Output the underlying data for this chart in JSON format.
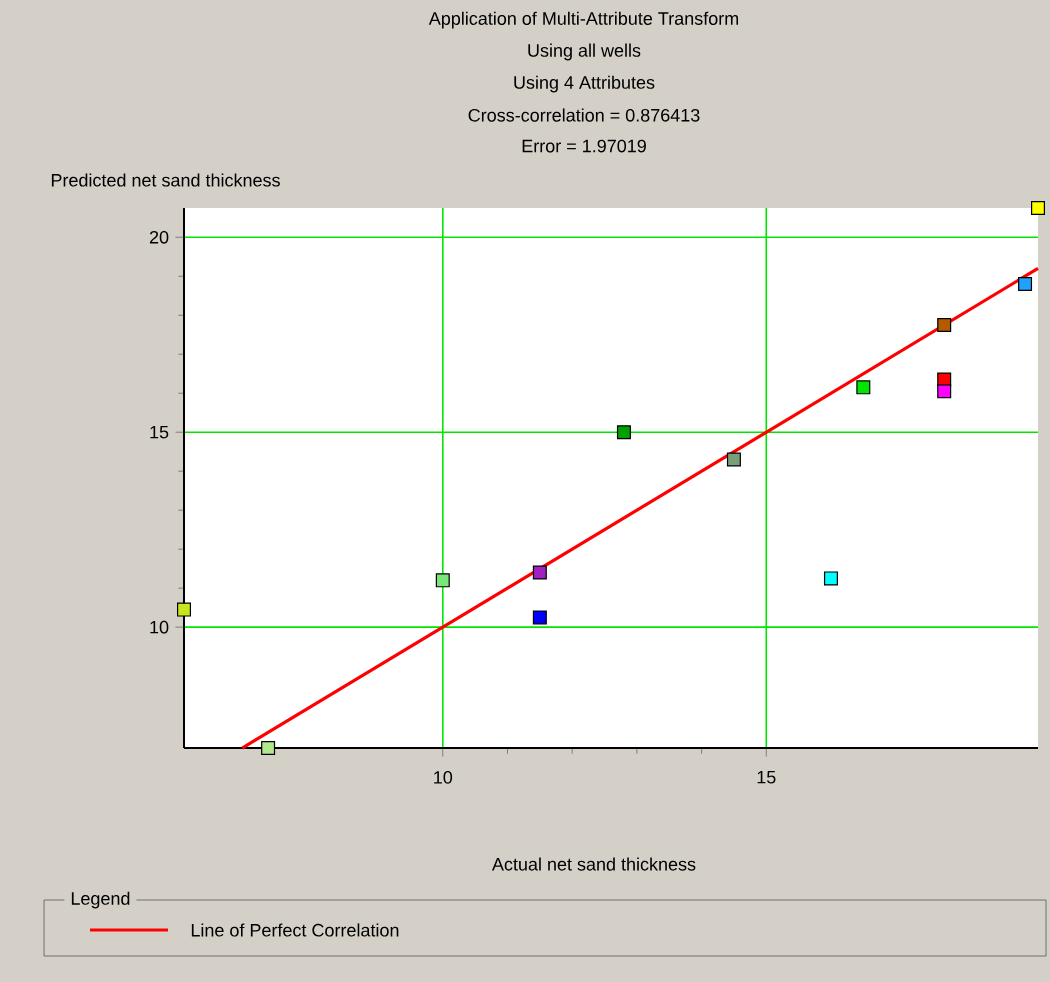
{
  "chart_data": {
    "type": "scatter",
    "title": "Application of Multi-Attribute Transform",
    "subtitle": "Using all wells",
    "annotations": [
      "Using 4 Attributes",
      "Cross-correlation = 0.876413",
      "Error = 1.97019"
    ],
    "xlabel": "Actual net sand thickness",
    "ylabel": "Predicted net sand thickness",
    "legend_title": "Legend",
    "legend": "bottom",
    "grid": true,
    "xlim": [
      6.0,
      19.2
    ],
    "ylim": [
      6.9,
      20.75
    ],
    "xticks": [
      10,
      15
    ],
    "yticks": [
      10,
      15,
      20
    ],
    "series": [
      {
        "type": "scatter",
        "marker": "square",
        "x": [
          6.0,
          7.3,
          10.0,
          11.5,
          11.5,
          12.8,
          14.5,
          16.0,
          16.5,
          17.75,
          17.75,
          17.75,
          19.0,
          19.2
        ],
        "values": [
          10.45,
          6.9,
          11.2,
          11.4,
          10.25,
          15.0,
          14.3,
          11.25,
          16.15,
          17.75,
          16.35,
          16.05,
          18.8,
          20.75
        ],
        "colors": [
          "#c8e61e",
          "#b4e68c",
          "#78e678",
          "#a020c0",
          "#0000ff",
          "#00a000",
          "#78a078",
          "#00ffff",
          "#00e600",
          "#b45a00",
          "#ff0000",
          "#ff00ff",
          "#20a0ff",
          "#ffff00"
        ]
      },
      {
        "type": "line",
        "name": "Line of Perfect Correlation",
        "color": "#ff0000",
        "marker": "none",
        "line_style": "solid",
        "x": [
          6.9,
          19.2
        ],
        "values": [
          6.9,
          19.2
        ]
      }
    ]
  }
}
